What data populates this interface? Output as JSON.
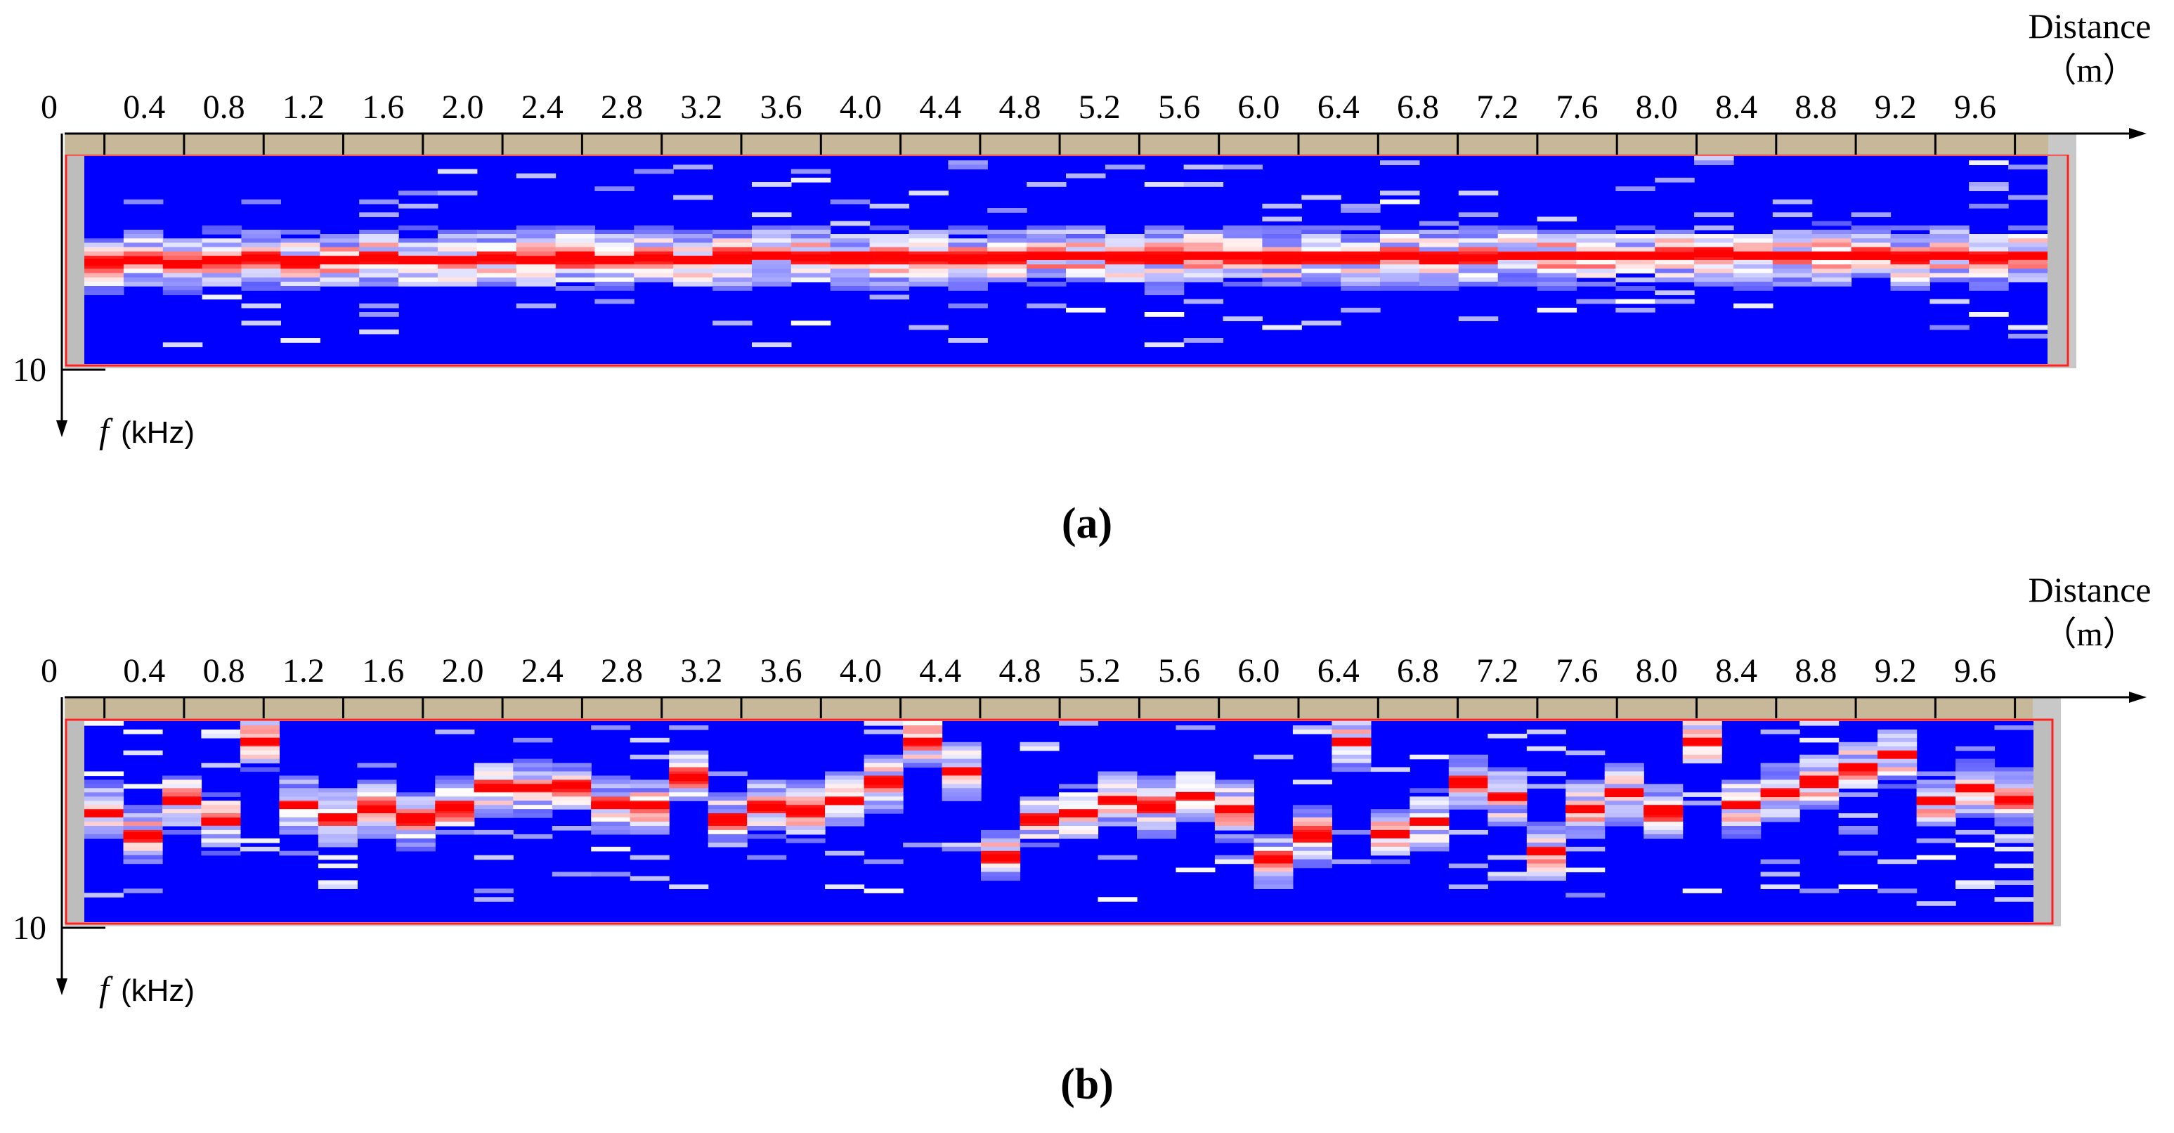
{
  "chart_data": [
    {
      "type": "heatmap",
      "panel_label": "(a)",
      "xlabel": "Distance",
      "xunit": "（m）",
      "ylabel_f": "f",
      "ylabel_unit": "(kHz)",
      "x_origin_label": "0",
      "y_max_label": "10",
      "x_ticks": [
        "0.4",
        "0.8",
        "1.2",
        "1.6",
        "2.0",
        "2.4",
        "2.8",
        "3.2",
        "3.6",
        "4.0",
        "4.4",
        "4.8",
        "5.2",
        "5.6",
        "6.0",
        "6.4",
        "6.8",
        "7.2",
        "7.6",
        "8.0",
        "8.4",
        "8.8",
        "9.2",
        "9.6"
      ],
      "xlim": [
        0,
        10
      ],
      "ylim": [
        0,
        10
      ],
      "colormap": {
        "low": "#0000ff",
        "mid": "#ffffff",
        "high": "#ff0000"
      },
      "dominant_freq_khz": [
        5.1,
        5.0,
        5.2,
        5.0,
        4.9,
        5.1,
        5.0,
        4.9,
        5.0,
        5.0,
        4.9,
        5.0,
        4.9,
        5.0,
        4.9,
        5.0,
        4.9,
        4.8,
        4.9,
        4.9,
        4.9,
        4.9,
        4.9,
        4.9,
        4.8,
        4.8,
        4.9,
        4.9,
        4.8,
        4.8,
        4.9,
        4.9,
        4.9,
        4.8,
        4.9,
        4.9,
        4.8,
        4.8,
        4.8,
        4.8,
        4.8,
        4.7,
        4.8,
        4.8,
        4.8,
        4.8,
        4.9,
        4.8,
        4.9,
        4.8
      ]
    },
    {
      "type": "heatmap",
      "panel_label": "(b)",
      "xlabel": "Distance",
      "xunit": "（m）",
      "ylabel_f": "f",
      "ylabel_unit": "(kHz)",
      "x_origin_label": "0",
      "y_max_label": "10",
      "x_ticks": [
        "0.4",
        "0.8",
        "1.2",
        "1.6",
        "2.0",
        "2.4",
        "2.8",
        "3.2",
        "3.6",
        "4.0",
        "4.4",
        "4.8",
        "5.2",
        "5.6",
        "6.0",
        "6.4",
        "6.8",
        "7.2",
        "7.6",
        "8.0",
        "8.4",
        "8.8",
        "9.2",
        "9.6"
      ],
      "xlim": [
        0,
        10
      ],
      "ylim": [
        0,
        10
      ],
      "colormap": {
        "low": "#0000ff",
        "mid": "#ffffff",
        "high": "#ff0000"
      },
      "dominant_freq_khz": [
        4.6,
        5.7,
        4.0,
        5.0,
        1.0,
        4.2,
        4.8,
        4.4,
        4.9,
        4.3,
        3.3,
        3.3,
        3.2,
        4.2,
        4.2,
        2.8,
        4.9,
        4.3,
        4.5,
        4.0,
        3.0,
        1.0,
        2.5,
        6.8,
        4.9,
        4.6,
        3.9,
        4.3,
        3.7,
        4.4,
        6.9,
        5.7,
        1.0,
        5.6,
        5.0,
        3.0,
        3.8,
        6.5,
        4.4,
        3.6,
        4.5,
        1.0,
        4.2,
        3.6,
        3.0,
        2.3,
        1.7,
        4.0,
        3.3,
        3.9
      ]
    }
  ]
}
